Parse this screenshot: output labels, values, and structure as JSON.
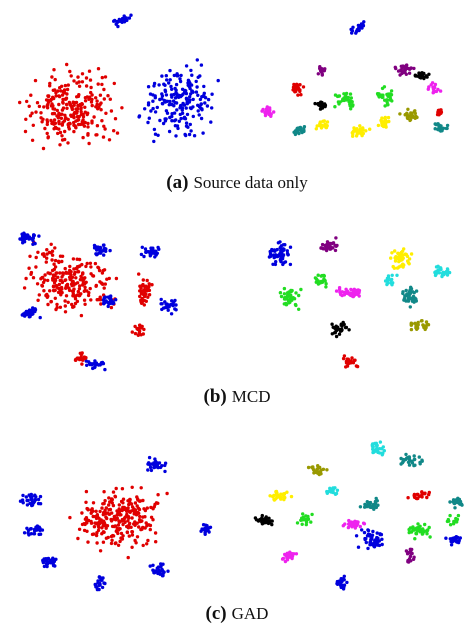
{
  "captions": [
    {
      "label": "(a)",
      "text": "Source data only"
    },
    {
      "label": "(b)",
      "text": "MCD"
    },
    {
      "label": "(c)",
      "text": "GAD"
    }
  ]
}
